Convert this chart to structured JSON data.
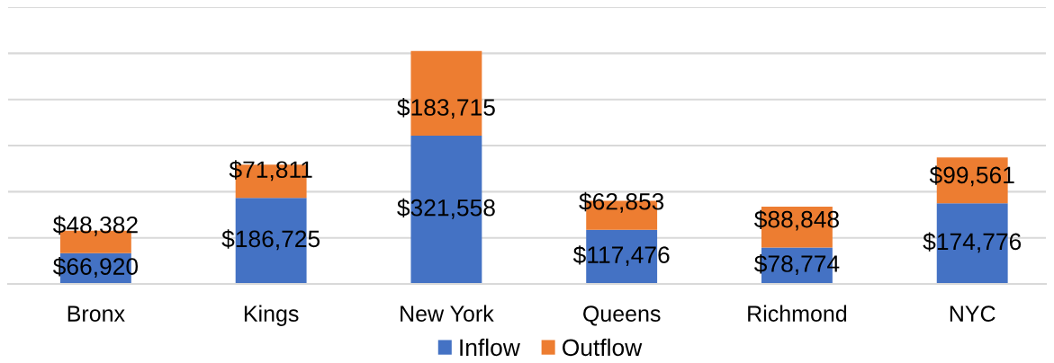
{
  "chart_data": {
    "type": "bar",
    "stacked": true,
    "categories": [
      "Bronx",
      "Kings",
      "New York",
      "Queens",
      "Richmond",
      "NYC"
    ],
    "series": [
      {
        "name": "Inflow",
        "color": "#4472c4",
        "values": [
          66920,
          186725,
          321558,
          117476,
          78774,
          174776
        ],
        "value_labels": [
          "$66,920",
          "$186,725",
          "$321,558",
          "$117,476",
          "$78,774",
          "$174,776"
        ]
      },
      {
        "name": "Outflow",
        "color": "#ed7d31",
        "values": [
          48382,
          71811,
          183715,
          62853,
          88848,
          99561
        ],
        "value_labels": [
          "$48,382",
          "$71,811",
          "$183,715",
          "$62,853",
          "$88,848",
          "$99,561"
        ]
      }
    ],
    "ylim": [
      0,
      600000
    ],
    "yticks": [
      {
        "value": 0,
        "label": null
      },
      {
        "value": 100000,
        "label": null
      },
      {
        "value": 200000,
        "label": null
      },
      {
        "value": 300000,
        "label": null
      },
      {
        "value": 400000,
        "label": null
      },
      {
        "value": 500000,
        "label": null
      },
      {
        "value": 600000,
        "label": null
      }
    ],
    "grid": "y",
    "legend": "bottom",
    "tick_labels": "x"
  }
}
